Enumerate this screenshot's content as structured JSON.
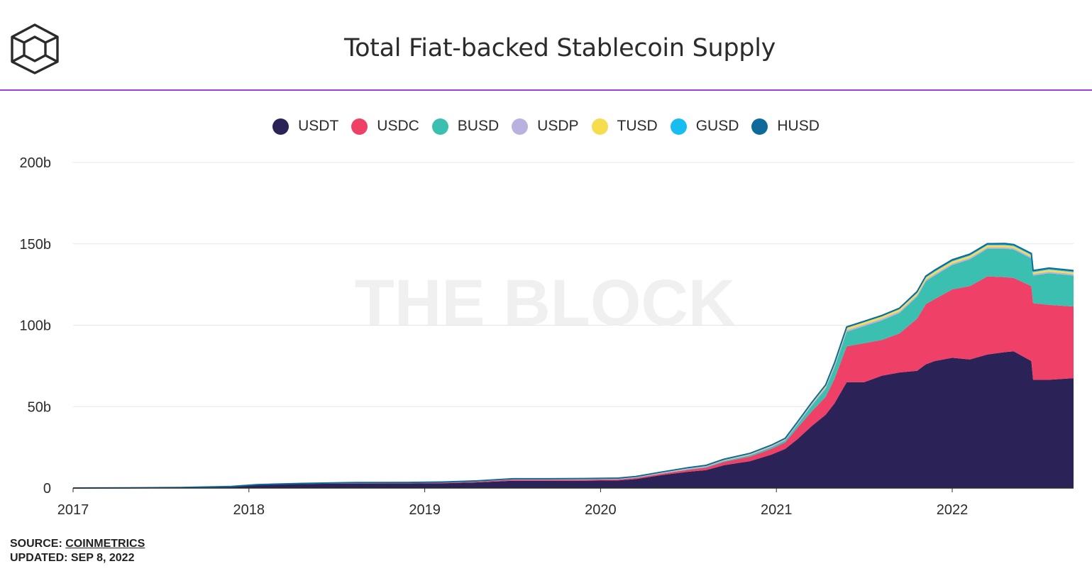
{
  "header": {
    "title": "Total Fiat-backed Stablecoin Supply",
    "logo_icon": "the-block-cube-icon"
  },
  "legend": [
    {
      "label": "USDT",
      "color": "#2b2358"
    },
    {
      "label": "USDC",
      "color": "#ef4167"
    },
    {
      "label": "BUSD",
      "color": "#3bbfb1"
    },
    {
      "label": "USDP",
      "color": "#b9b1e0"
    },
    {
      "label": "TUSD",
      "color": "#f7dc4d"
    },
    {
      "label": "GUSD",
      "color": "#17bdf0"
    },
    {
      "label": "HUSD",
      "color": "#0e6a9a"
    }
  ],
  "watermark": "THE BLOCK",
  "footer": {
    "source_label": "SOURCE: ",
    "source_name": "COINMETRICS",
    "updated": "UPDATED: SEP 8, 2022"
  },
  "chart_data": {
    "type": "area",
    "stacked": true,
    "title": "Total Fiat-backed Stablecoin Supply",
    "xlabel": "",
    "ylabel": "",
    "xlim": [
      2017.0,
      2022.69
    ],
    "ylim": [
      0,
      200
    ],
    "y_unit": "b",
    "y_ticks": [
      "0",
      "50b",
      "100b",
      "150b",
      "200b"
    ],
    "y_tick_values": [
      0,
      50,
      100,
      150,
      200
    ],
    "x_ticks": [
      "2017",
      "2018",
      "2019",
      "2020",
      "2021",
      "2022"
    ],
    "x_tick_values": [
      2017,
      2018,
      2019,
      2020,
      2021,
      2022
    ],
    "grid": true,
    "legend_position": "top-center",
    "x": [
      2017.0,
      2017.3,
      2017.6,
      2017.9,
      2018.05,
      2018.3,
      2018.6,
      2018.9,
      2019.1,
      2019.3,
      2019.5,
      2019.7,
      2019.9,
      2020.1,
      2020.2,
      2020.35,
      2020.5,
      2020.6,
      2020.7,
      2020.85,
      2020.97,
      2021.05,
      2021.12,
      2021.2,
      2021.28,
      2021.33,
      2021.4,
      2021.5,
      2021.6,
      2021.7,
      2021.8,
      2021.85,
      2021.9,
      2022.0,
      2022.1,
      2022.2,
      2022.3,
      2022.35,
      2022.45,
      2022.46,
      2022.55,
      2022.69
    ],
    "series": [
      {
        "name": "USDT",
        "values": [
          0.02,
          0.1,
          0.3,
          1.0,
          2.0,
          2.5,
          2.8,
          2.8,
          2.9,
          3.5,
          4.5,
          4.5,
          4.5,
          4.7,
          5.5,
          8.0,
          10.0,
          11.0,
          14.0,
          16.5,
          20.5,
          24.0,
          30.0,
          38.0,
          45.0,
          52.0,
          65.0,
          65.0,
          69.0,
          71.0,
          72.0,
          76.0,
          78.0,
          80.0,
          79.0,
          82.0,
          83.5,
          84.0,
          78.0,
          66.5,
          66.5,
          67.5
        ]
      },
      {
        "name": "USDC",
        "values": [
          0,
          0,
          0,
          0,
          0.05,
          0.1,
          0.2,
          0.3,
          0.4,
          0.4,
          0.6,
          0.6,
          0.6,
          0.6,
          0.7,
          0.8,
          1.2,
          1.5,
          2.0,
          2.8,
          3.5,
          4.0,
          7.0,
          9.0,
          11.0,
          15.0,
          22.0,
          24.0,
          22.0,
          24.0,
          32.0,
          37.0,
          38.0,
          42.0,
          45.0,
          48.0,
          46.0,
          45.0,
          46.0,
          47.0,
          46.0,
          44.0
        ]
      },
      {
        "name": "BUSD",
        "values": [
          0,
          0,
          0,
          0,
          0,
          0,
          0,
          0,
          0,
          0,
          0.01,
          0.02,
          0.03,
          0.1,
          0.1,
          0.15,
          0.3,
          0.4,
          0.5,
          0.8,
          1.0,
          1.2,
          2.0,
          3.5,
          5.0,
          7.0,
          9.0,
          10.5,
          12.0,
          12.5,
          13.5,
          14.0,
          14.5,
          15.0,
          16.5,
          17.0,
          17.5,
          17.5,
          17.0,
          17.0,
          19.5,
          19.0
        ]
      },
      {
        "name": "USDP",
        "values": [
          0,
          0,
          0,
          0,
          0,
          0.05,
          0.1,
          0.1,
          0.1,
          0.2,
          0.25,
          0.25,
          0.25,
          0.25,
          0.3,
          0.4,
          0.5,
          0.5,
          0.5,
          0.5,
          0.6,
          0.6,
          0.7,
          0.8,
          0.9,
          0.9,
          1.0,
          1.0,
          1.0,
          1.0,
          1.0,
          1.0,
          1.0,
          0.9,
          0.9,
          0.9,
          0.9,
          0.9,
          0.9,
          0.9,
          0.9,
          0.9
        ]
      },
      {
        "name": "TUSD",
        "values": [
          0,
          0,
          0,
          0,
          0.05,
          0.15,
          0.2,
          0.2,
          0.2,
          0.2,
          0.2,
          0.2,
          0.2,
          0.2,
          0.25,
          0.3,
          0.3,
          0.3,
          0.35,
          0.4,
          0.4,
          0.4,
          0.5,
          0.6,
          0.9,
          1.2,
          1.3,
          1.3,
          1.3,
          1.3,
          1.3,
          1.3,
          1.3,
          1.3,
          1.3,
          1.2,
          1.2,
          1.2,
          1.2,
          1.2,
          1.2,
          1.2
        ]
      },
      {
        "name": "GUSD",
        "values": [
          0,
          0,
          0,
          0,
          0.05,
          0.05,
          0.05,
          0.05,
          0.05,
          0.05,
          0.05,
          0.05,
          0.05,
          0.05,
          0.05,
          0.05,
          0.05,
          0.05,
          0.05,
          0.05,
          0.05,
          0.05,
          0.1,
          0.1,
          0.15,
          0.15,
          0.2,
          0.2,
          0.2,
          0.2,
          0.3,
          0.3,
          0.4,
          0.4,
          0.4,
          0.4,
          0.5,
          0.5,
          0.5,
          0.5,
          0.5,
          0.5
        ]
      },
      {
        "name": "HUSD",
        "values": [
          0,
          0,
          0,
          0,
          0,
          0,
          0,
          0,
          0.05,
          0.05,
          0.1,
          0.1,
          0.2,
          0.2,
          0.2,
          0.2,
          0.2,
          0.2,
          0.25,
          0.25,
          0.25,
          0.3,
          0.3,
          0.4,
          0.4,
          0.5,
          0.5,
          0.5,
          0.5,
          0.5,
          0.6,
          0.6,
          0.6,
          0.6,
          0.6,
          0.6,
          0.6,
          0.5,
          0.5,
          0.5,
          0.5,
          0.5
        ]
      }
    ]
  }
}
